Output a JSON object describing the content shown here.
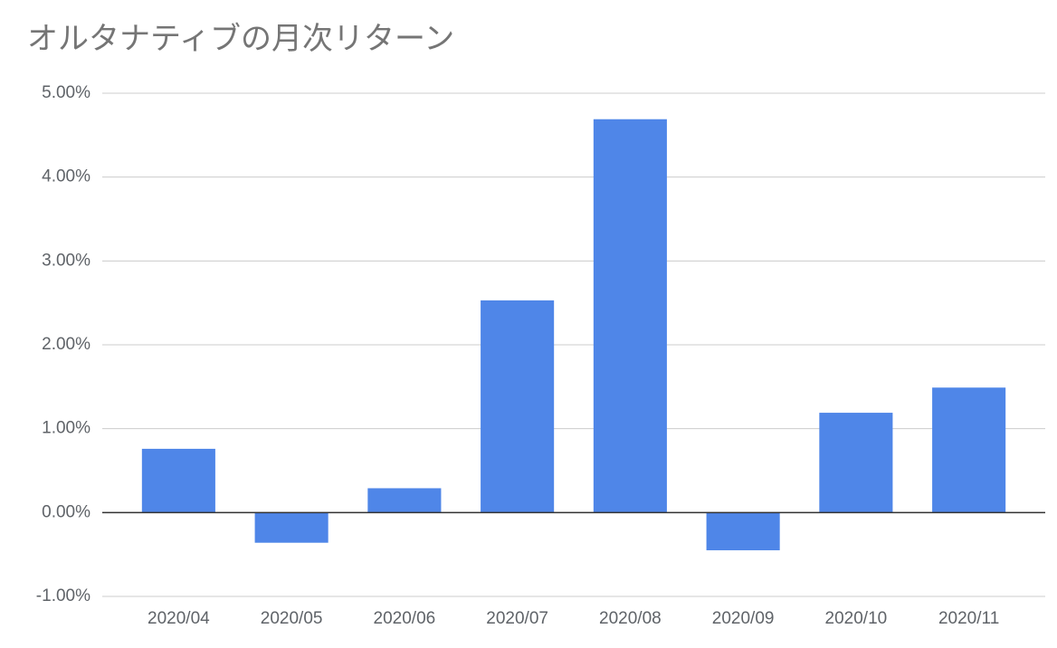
{
  "chart_data": {
    "type": "bar",
    "title": "オルタナティブの月次リターン",
    "categories": [
      "2020/04",
      "2020/05",
      "2020/06",
      "2020/07",
      "2020/08",
      "2020/09",
      "2020/10",
      "2020/11"
    ],
    "values": [
      0.76,
      -0.36,
      0.29,
      2.53,
      4.69,
      -0.45,
      1.19,
      1.49
    ],
    "color": "#4f86e8",
    "ylim": [
      -1,
      5
    ],
    "yticks": [
      {
        "value": -1,
        "label": "-1.00%"
      },
      {
        "value": 0,
        "label": "0.00%"
      },
      {
        "value": 1,
        "label": "1.00%"
      },
      {
        "value": 2,
        "label": "2.00%"
      },
      {
        "value": 3,
        "label": "3.00%"
      },
      {
        "value": 4,
        "label": "4.00%"
      },
      {
        "value": 5,
        "label": "5.00%"
      }
    ],
    "grid": true
  }
}
